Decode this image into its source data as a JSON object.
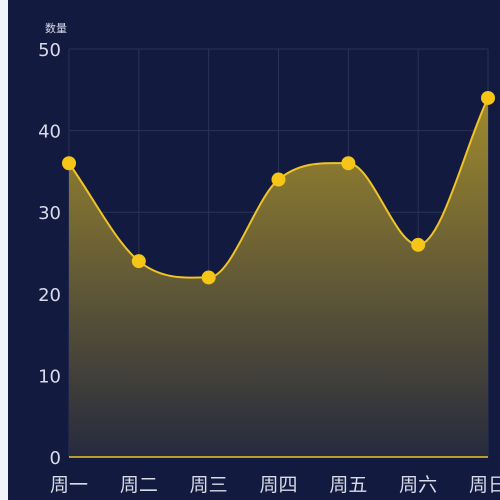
{
  "chart_data": {
    "type": "area",
    "title": "",
    "xlabel": "",
    "ylabel": "数量",
    "categories": [
      "周一",
      "周二",
      "周三",
      "周四",
      "周五",
      "周六",
      "周日"
    ],
    "values": [
      36,
      24,
      22,
      34,
      36,
      26,
      44
    ],
    "ylim": [
      0,
      50
    ],
    "yticks": [
      "0",
      "10",
      "20",
      "30",
      "40",
      "50"
    ],
    "grid": true,
    "smooth": true,
    "colors": {
      "background": "#131a3f",
      "line": "#f0c426",
      "point": "#f5c518",
      "area_top": "#a08a2d",
      "area_bottom": "#262a3e",
      "grid": "#2b3257",
      "text": "#d7dbea"
    }
  }
}
